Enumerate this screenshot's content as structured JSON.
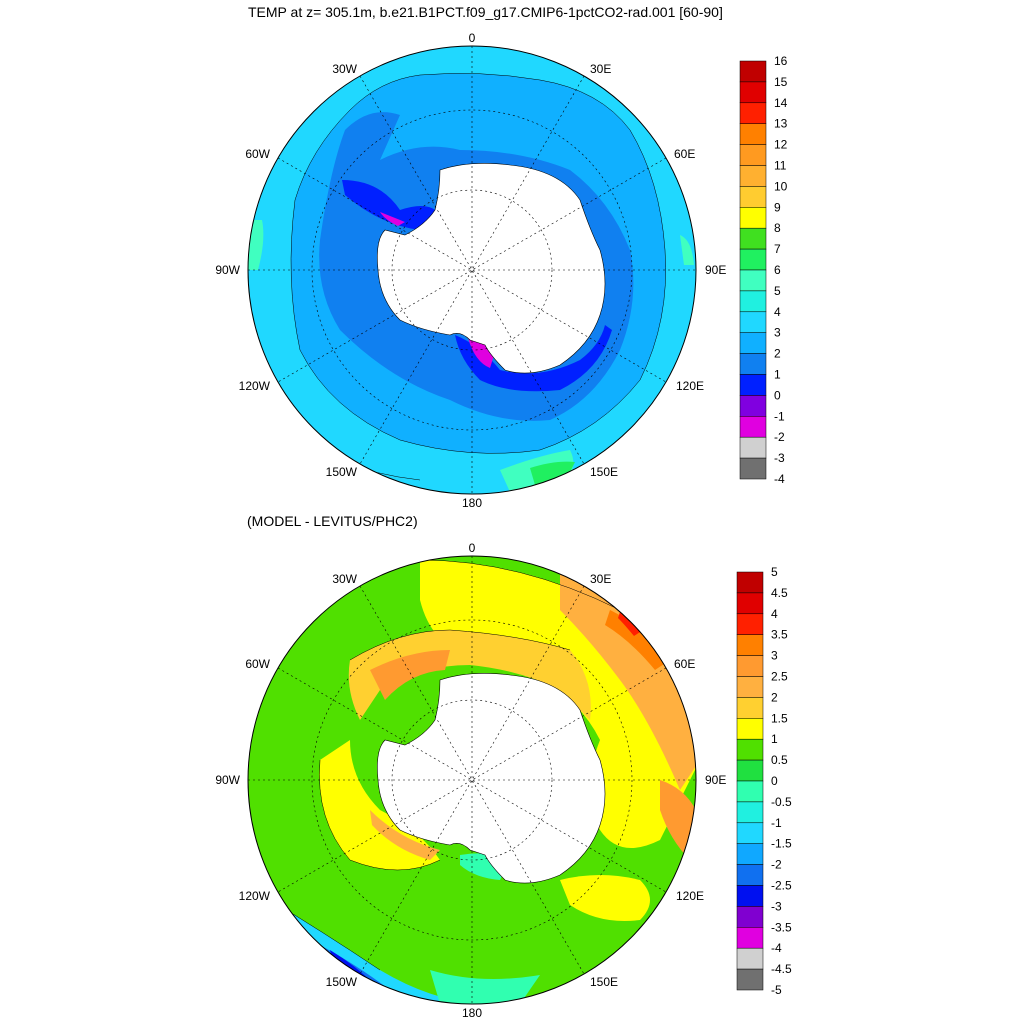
{
  "map1": {
    "title": "TEMP at z= 305.1m, b.e21.B1PCT.f09_g17.CMIP6-1pctCO2-rad.001 [60-90]",
    "longitude_labels": [
      "0",
      "30E",
      "60E",
      "90E",
      "120E",
      "150E",
      "180",
      "150W",
      "120W",
      "90W",
      "60W",
      "30W"
    ],
    "colorbar": {
      "labels": [
        "16",
        "15",
        "14",
        "13",
        "12",
        "11",
        "10",
        "9",
        "8",
        "7",
        "6",
        "5",
        "4",
        "3",
        "2",
        "1",
        "0",
        "-1",
        "-2",
        "-3",
        "-4"
      ],
      "colors": [
        "#c00000",
        "#e00000",
        "#ff2000",
        "#ff8000",
        "#ff9a20",
        "#ffb030",
        "#ffcc30",
        "#ffff00",
        "#40e020",
        "#20f060",
        "#40ffc0",
        "#20f0e0",
        "#20d8ff",
        "#10b0ff",
        "#1080f0",
        "#0020ff",
        "#8000e0",
        "#e000e0",
        "#d0d0d0",
        "#707070"
      ]
    }
  },
  "map2": {
    "title": "(MODEL - LEVITUS/PHC2)",
    "longitude_labels": [
      "0",
      "30E",
      "60E",
      "90E",
      "120E",
      "150E",
      "180",
      "150W",
      "120W",
      "90W",
      "60W",
      "30W"
    ],
    "colorbar": {
      "labels": [
        "5",
        "4.5",
        "4",
        "3.5",
        "3",
        "2.5",
        "2",
        "1.5",
        "1",
        "0.5",
        "0",
        "-0.5",
        "-1",
        "-1.5",
        "-2",
        "-2.5",
        "-3",
        "-3.5",
        "-4",
        "-4.5",
        "-5"
      ],
      "colors": [
        "#c00000",
        "#e00000",
        "#ff2000",
        "#ff8000",
        "#ff9a30",
        "#ffb040",
        "#ffd030",
        "#ffff00",
        "#50e000",
        "#20e040",
        "#30ffb0",
        "#20f0e0",
        "#20d8ff",
        "#10a8ff",
        "#1070f0",
        "#0010f0",
        "#8000d0",
        "#e000e0",
        "#d0d0d0",
        "#707070"
      ]
    }
  }
}
